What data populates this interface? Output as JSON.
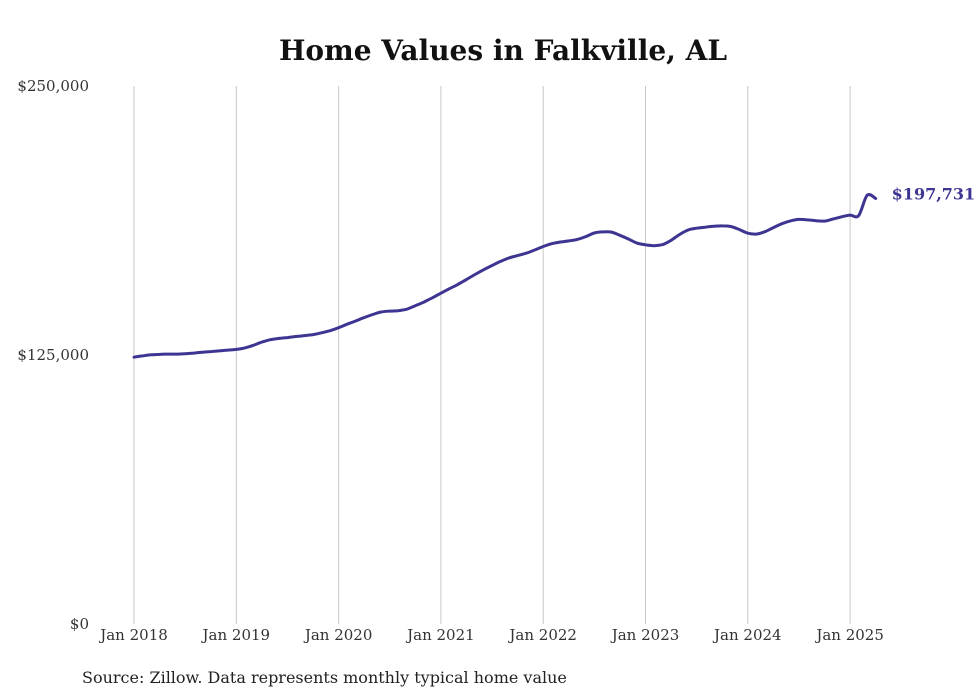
{
  "chart_data": {
    "type": "line",
    "title": "Home Values in Falkville, AL",
    "xlabel": "",
    "ylabel": "",
    "ylim": [
      0,
      250000
    ],
    "yticks": [
      0,
      125000,
      250000
    ],
    "ytick_labels": [
      "$0",
      "$125,000",
      "$250,000"
    ],
    "xticks": [
      "2018-01",
      "2019-01",
      "2020-01",
      "2021-01",
      "2022-01",
      "2023-01",
      "2024-01",
      "2025-01"
    ],
    "xtick_labels": [
      "Jan 2018",
      "Jan 2019",
      "Jan 2020",
      "Jan 2021",
      "Jan 2022",
      "Jan 2023",
      "Jan 2024",
      "Jan 2025"
    ],
    "grid": "vertical",
    "line_color": "#3d3591",
    "end_label": "$197,731",
    "source": "Source: Zillow. Data represents monthly typical home value",
    "series": [
      {
        "x": [
          "2018-01",
          "2018-02",
          "2018-03",
          "2018-04",
          "2018-05",
          "2018-06",
          "2018-07",
          "2018-08",
          "2018-09",
          "2018-10",
          "2018-11",
          "2018-12",
          "2019-01",
          "2019-02",
          "2019-03",
          "2019-04",
          "2019-05",
          "2019-06",
          "2019-07",
          "2019-08",
          "2019-09",
          "2019-10",
          "2019-11",
          "2019-12",
          "2020-01",
          "2020-02",
          "2020-03",
          "2020-04",
          "2020-05",
          "2020-06",
          "2020-07",
          "2020-08",
          "2020-09",
          "2020-10",
          "2020-11",
          "2020-12",
          "2021-01",
          "2021-02",
          "2021-03",
          "2021-04",
          "2021-05",
          "2021-06",
          "2021-07",
          "2021-08",
          "2021-09",
          "2021-10",
          "2021-11",
          "2021-12",
          "2022-01",
          "2022-02",
          "2022-03",
          "2022-04",
          "2022-05",
          "2022-06",
          "2022-07",
          "2022-08",
          "2022-09",
          "2022-10",
          "2022-11",
          "2022-12",
          "2023-01",
          "2023-02",
          "2023-03",
          "2023-04",
          "2023-05",
          "2023-06",
          "2023-07",
          "2023-08",
          "2023-09",
          "2023-10",
          "2023-11",
          "2023-12",
          "2024-01",
          "2024-02",
          "2024-03",
          "2024-04",
          "2024-05",
          "2024-06",
          "2024-07",
          "2024-08",
          "2024-09",
          "2024-10",
          "2024-11",
          "2024-12",
          "2025-01",
          "2025-02",
          "2025-03",
          "2025-04"
        ],
        "y": [
          124000,
          124600,
          125100,
          125300,
          125400,
          125400,
          125600,
          125900,
          126300,
          126600,
          126900,
          127300,
          127600,
          128300,
          129500,
          131000,
          132100,
          132700,
          133100,
          133600,
          134000,
          134500,
          135300,
          136300,
          137700,
          139300,
          140800,
          142400,
          143800,
          145000,
          145400,
          145600,
          146300,
          147900,
          149600,
          151600,
          153700,
          155800,
          157800,
          160100,
          162400,
          164600,
          166600,
          168500,
          170100,
          171200,
          172300,
          173800,
          175400,
          176700,
          177500,
          178000,
          178700,
          180000,
          181700,
          182200,
          182100,
          180600,
          178900,
          177000,
          176200,
          175800,
          176300,
          178300,
          181000,
          183100,
          183900,
          184400,
          184800,
          185000,
          184700,
          183300,
          181600,
          181200,
          182300,
          184200,
          186000,
          187300,
          188000,
          187800,
          187400,
          187200,
          188200,
          189200,
          190000,
          189800,
          199200,
          197731
        ]
      }
    ]
  }
}
